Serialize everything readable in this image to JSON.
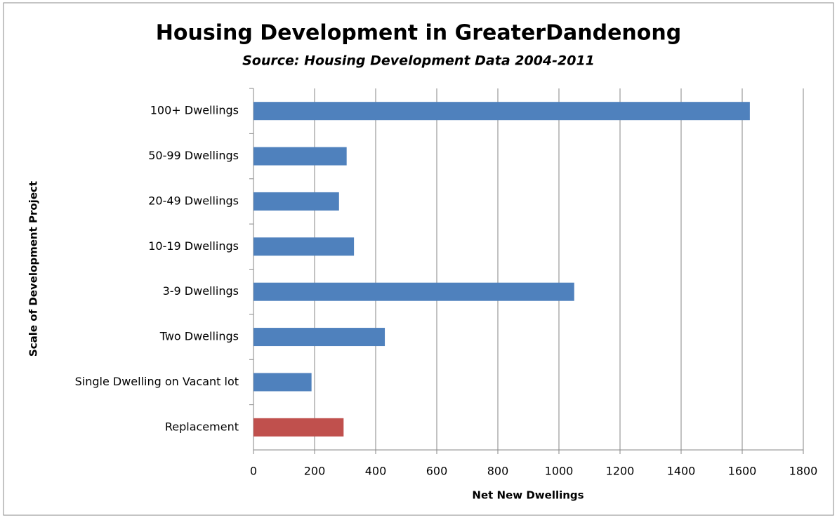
{
  "chart_data": {
    "type": "barh",
    "title": "Housing Development in GreaterDandenong",
    "subtitle": "Source: Housing Development Data 2004-2011",
    "x_label": "Net New Dwellings",
    "y_label": "Scale of Development Project",
    "categories": [
      "100+ Dwellings",
      "50-99 Dwellings",
      "20-49 Dwellings",
      "10-19 Dwellings",
      "3-9 Dwellings",
      "Two Dwellings",
      "Single Dwelling on Vacant lot",
      "Replacement"
    ],
    "values": [
      1625,
      305,
      280,
      329,
      1050,
      430,
      190,
      295
    ],
    "colors": [
      "#4f81bd",
      "#4f81bd",
      "#4f81bd",
      "#4f81bd",
      "#4f81bd",
      "#4f81bd",
      "#4f81bd",
      "#c0504d"
    ],
    "xlim": [
      0,
      1800
    ],
    "xticks": [
      0,
      200,
      400,
      600,
      800,
      1000,
      1200,
      1400,
      1600,
      1800
    ],
    "grid": true
  }
}
